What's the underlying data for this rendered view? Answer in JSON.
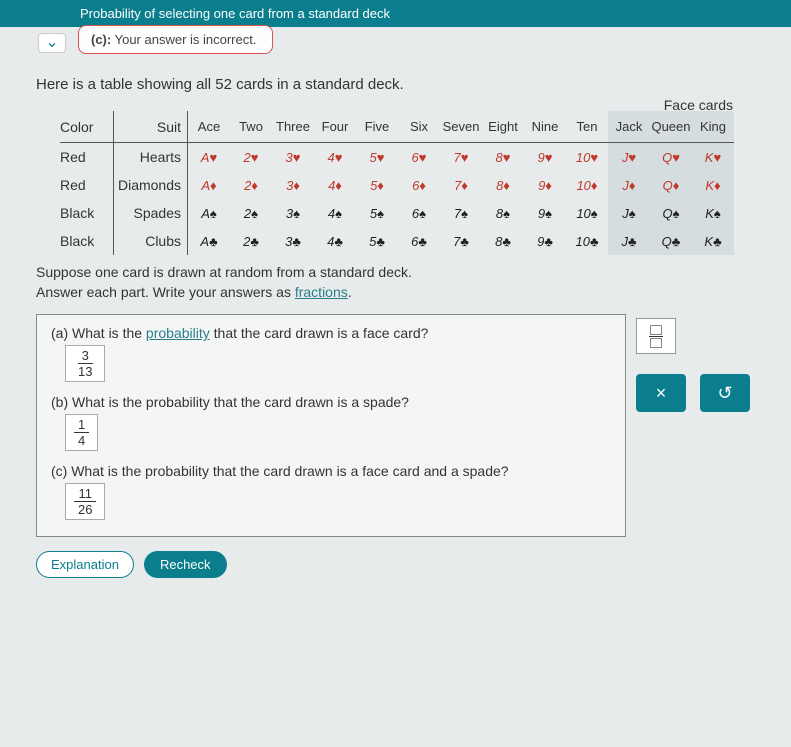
{
  "header": {
    "title": "Probability of selecting one card from a standard deck"
  },
  "feedback": {
    "label": "(c):",
    "message": "Your answer is incorrect."
  },
  "intro": "Here is a table showing all 52 cards in a standard deck.",
  "table": {
    "face_header": "Face cards",
    "headers": [
      "Color",
      "Suit",
      "Ace",
      "Two",
      "Three",
      "Four",
      "Five",
      "Six",
      "Seven",
      "Eight",
      "Nine",
      "Ten",
      "Jack",
      "Queen",
      "King"
    ],
    "rows": [
      {
        "color": "Red",
        "suit": "Hearts",
        "sym": "♥",
        "cls": "red"
      },
      {
        "color": "Red",
        "suit": "Diamonds",
        "sym": "♦",
        "cls": "red"
      },
      {
        "color": "Black",
        "suit": "Spades",
        "sym": "♠",
        "cls": "black"
      },
      {
        "color": "Black",
        "suit": "Clubs",
        "sym": "♣",
        "cls": "black"
      }
    ],
    "ranks": [
      "A",
      "2",
      "3",
      "4",
      "5",
      "6",
      "7",
      "8",
      "9",
      "10",
      "J",
      "Q",
      "K"
    ]
  },
  "instruct": {
    "line1": "Suppose one card is drawn at random from a standard deck.",
    "line2a": "Answer each part. Write your answers as ",
    "line2b": "fractions",
    "line2c": "."
  },
  "parts": {
    "a": {
      "q1": "(a) What is the ",
      "qlink": "probability",
      "q2": " that the card drawn is a face card?",
      "num": "3",
      "den": "13"
    },
    "b": {
      "q": "(b) What is the probability that the card drawn is a spade?",
      "num": "1",
      "den": "4"
    },
    "c": {
      "q": "(c) What is the probability that the card drawn is a face card and a spade?",
      "num": "11",
      "den": "26"
    }
  },
  "tools": {
    "clear": "×",
    "reset": "↺"
  },
  "footer": {
    "explain": "Explanation",
    "recheck": "Recheck"
  }
}
